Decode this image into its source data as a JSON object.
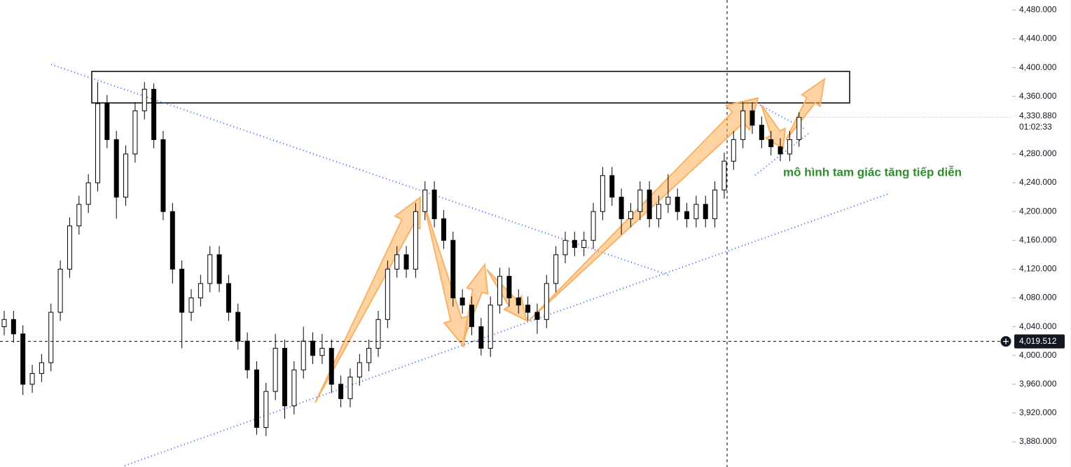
{
  "chart_data": {
    "type": "candlestick",
    "annotation": "mô hình tam giác tăng tiếp diễn",
    "ylim": [
      3845,
      4494
    ],
    "yticks": [
      {
        "value": 4480,
        "label": "4,480.000"
      },
      {
        "value": 4440,
        "label": "4,440.000"
      },
      {
        "value": 4400,
        "label": "4,400.000"
      },
      {
        "value": 4360,
        "label": "4,360.000"
      },
      {
        "value": 4280,
        "label": "4,280.000"
      },
      {
        "value": 4240,
        "label": "4,240.000"
      },
      {
        "value": 4200,
        "label": "4,200.000"
      },
      {
        "value": 4160,
        "label": "4,160.000"
      },
      {
        "value": 4120,
        "label": "4,120.000"
      },
      {
        "value": 4080,
        "label": "4,080.000"
      },
      {
        "value": 4040,
        "label": "4,040.000"
      },
      {
        "value": 4000,
        "label": "4,000.000"
      },
      {
        "value": 3960,
        "label": "3,960.000"
      },
      {
        "value": 3920,
        "label": "3,920.000"
      },
      {
        "value": 3880,
        "label": "3,880.000"
      }
    ],
    "current_price": {
      "value": 4330.88,
      "label": "4,330.880",
      "countdown": "01:02:33"
    },
    "crosshair_price": {
      "value": 4019.512,
      "label": "4,019.512"
    },
    "up_color": "#ffffff",
    "down_color": "#000000",
    "open": [
      4040,
      4050,
      4030,
      3960,
      3975,
      3990,
      4060,
      4120,
      4180,
      4210,
      4240,
      4350,
      4300,
      4220,
      4280,
      4340,
      4370,
      4300,
      4200,
      4120,
      4060,
      4080,
      4100,
      4140,
      4100,
      4060,
      4020,
      3980,
      3900,
      3950,
      4010,
      3930,
      3980,
      4020,
      4000,
      4010,
      3960,
      3940,
      3970,
      3990,
      4010,
      4050,
      4120,
      4140,
      4120,
      4200,
      4230,
      4190,
      4160,
      4080,
      4070,
      4040,
      4010,
      4070,
      4110,
      4080,
      4070,
      4060,
      4050,
      4100,
      4140,
      4160,
      4150,
      4160,
      4200,
      4250,
      4220,
      4190,
      4200,
      4230,
      4190,
      4210,
      4220,
      4200,
      4190,
      4210,
      4190,
      4230,
      4270,
      4300,
      4340,
      4320,
      4300,
      4290,
      4280,
      4300
    ],
    "high": [
      4062,
      4062,
      4042,
      3987,
      4002,
      4072,
      4132,
      4192,
      4222,
      4252,
      4380,
      4362,
      4312,
      4292,
      4352,
      4380,
      4378,
      4312,
      4212,
      4132,
      4092,
      4112,
      4152,
      4152,
      4112,
      4072,
      4032,
      3992,
      3962,
      4030,
      4022,
      3992,
      4040,
      4032,
      4030,
      4022,
      3972,
      3982,
      4002,
      4022,
      4062,
      4132,
      4152,
      4152,
      4212,
      4242,
      4242,
      4202,
      4172,
      4092,
      4082,
      4052,
      4082,
      4122,
      4122,
      4092,
      4082,
      4072,
      4112,
      4152,
      4172,
      4172,
      4172,
      4212,
      4262,
      4262,
      4232,
      4212,
      4242,
      4242,
      4222,
      4252,
      4232,
      4212,
      4222,
      4222,
      4242,
      4282,
      4312,
      4352,
      4352,
      4332,
      4312,
      4302,
      4312,
      4338
    ],
    "low": [
      4028,
      4018,
      3945,
      3948,
      3963,
      3978,
      4048,
      4108,
      4168,
      4198,
      4228,
      4288,
      4190,
      4208,
      4268,
      4328,
      4288,
      4188,
      4100,
      4010,
      4048,
      4068,
      4088,
      4088,
      4048,
      4008,
      3968,
      3890,
      3888,
      3938,
      3912,
      3918,
      3968,
      3988,
      3988,
      3948,
      3928,
      3928,
      3958,
      3978,
      3998,
      4038,
      4108,
      4108,
      4108,
      4188,
      4178,
      4148,
      4068,
      4058,
      4028,
      4000,
      3998,
      4058,
      4068,
      4058,
      4048,
      4030,
      4038,
      4088,
      4128,
      4138,
      4138,
      4148,
      4188,
      4208,
      4168,
      4178,
      4188,
      4178,
      4178,
      4198,
      4188,
      4178,
      4178,
      4178,
      4178,
      4218,
      4258,
      4288,
      4308,
      4288,
      4278,
      4270,
      4270,
      4290
    ],
    "close": [
      4050,
      4030,
      3960,
      3975,
      3990,
      4060,
      4120,
      4180,
      4210,
      4240,
      4350,
      4300,
      4220,
      4280,
      4340,
      4370,
      4300,
      4200,
      4120,
      4060,
      4080,
      4100,
      4140,
      4100,
      4060,
      4020,
      3980,
      3900,
      3950,
      4010,
      3930,
      3980,
      4020,
      4000,
      4010,
      3960,
      3940,
      3970,
      3990,
      4010,
      4050,
      4120,
      4140,
      4120,
      4200,
      4230,
      4190,
      4160,
      4080,
      4070,
      4040,
      4010,
      4070,
      4110,
      4080,
      4070,
      4060,
      4050,
      4100,
      4140,
      4160,
      4150,
      4160,
      4200,
      4250,
      4220,
      4190,
      4200,
      4230,
      4190,
      4210,
      4220,
      4200,
      4190,
      4210,
      4190,
      4230,
      4270,
      4300,
      4340,
      4320,
      4300,
      4290,
      4280,
      4300,
      4330.88
    ]
  }
}
